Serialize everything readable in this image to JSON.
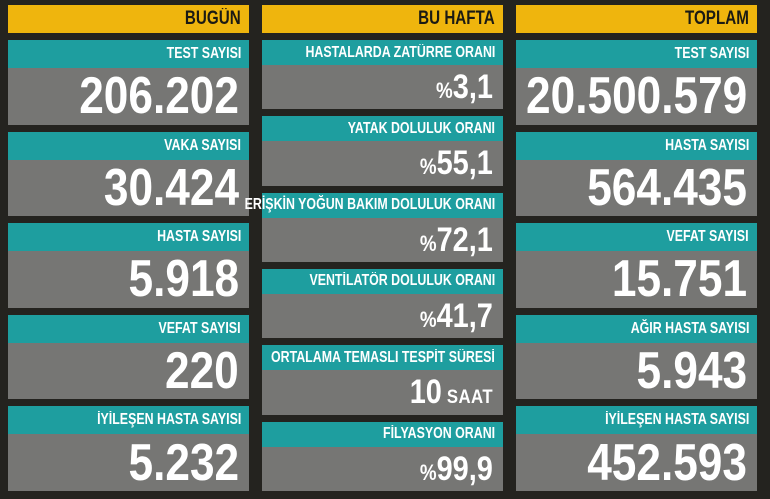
{
  "colors": {
    "background": "#24231f",
    "header_yellow": "#efb50d",
    "label_teal": "#1e9e9f",
    "value_gray": "#767674",
    "text_light": "#ffffff",
    "text_dark": "#1b1a14"
  },
  "chart_data": {
    "type": "table",
    "columns": [
      {
        "header": "BUGÜN",
        "items": [
          {
            "label": "TEST SAYISI",
            "value": "206.202"
          },
          {
            "label": "VAKA SAYISI",
            "value": "30.424"
          },
          {
            "label": "HASTA SAYISI",
            "value": "5.918"
          },
          {
            "label": "VEFAT SAYISI",
            "value": "220"
          },
          {
            "label": "İYİLEŞEN HASTA SAYISI",
            "value": "5.232"
          }
        ]
      },
      {
        "header": "BU HAFTA",
        "items": [
          {
            "label": "HASTALARDA ZATÜRRE ORANI",
            "prefix": "%",
            "value": "3,1"
          },
          {
            "label": "YATAK DOLULUK ORANI",
            "prefix": "%",
            "value": "55,1"
          },
          {
            "label": "ERİŞKİN YOĞUN BAKIM DOLULUK ORANI",
            "prefix": "%",
            "value": "72,1"
          },
          {
            "label": "VENTİLATÖR DOLULUK ORANI",
            "prefix": "%",
            "value": "41,7"
          },
          {
            "label": "ORTALAMA TEMASLI TESPİT SÜRESİ",
            "value": "10",
            "suffix": " SAAT"
          },
          {
            "label": "FİLYASYON ORANI",
            "prefix": "%",
            "value": "99,9"
          }
        ]
      },
      {
        "header": "TOPLAM",
        "items": [
          {
            "label": "TEST SAYISI",
            "value": "20.500.579"
          },
          {
            "label": "HASTA SAYISI",
            "value": "564.435"
          },
          {
            "label": "VEFAT SAYISI",
            "value": "15.751"
          },
          {
            "label": "AĞIR HASTA SAYISI",
            "value": "5.943"
          },
          {
            "label": "İYİLEŞEN HASTA SAYISI",
            "value": "452.593"
          }
        ]
      }
    ]
  }
}
